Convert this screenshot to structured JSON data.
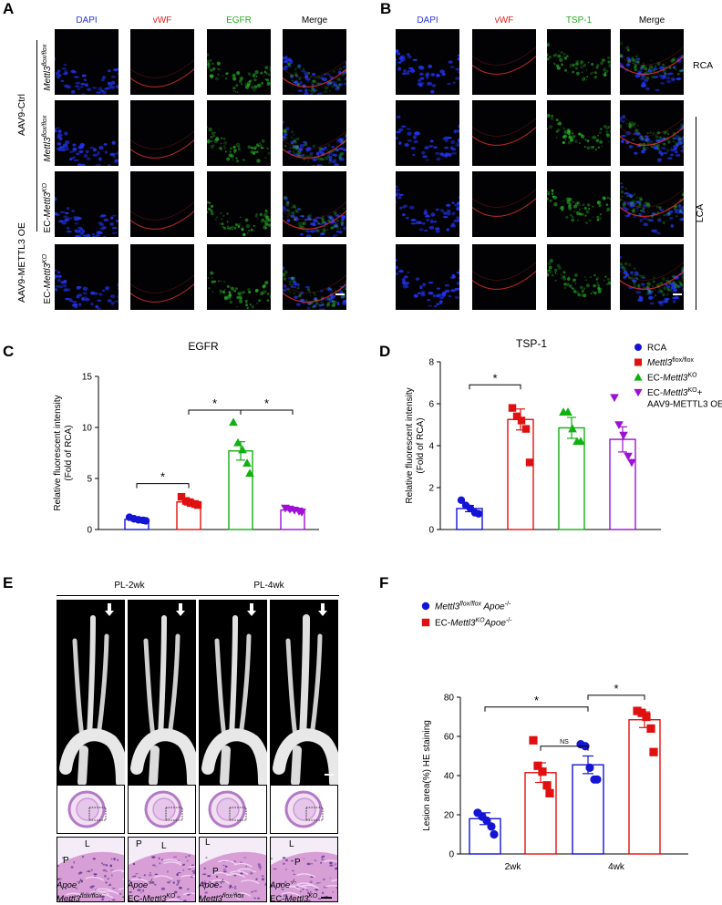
{
  "panels": {
    "A": {
      "label": "A",
      "channels": [
        "DAPI",
        "vWF",
        "EGFR",
        "Merge"
      ],
      "group_ctrl": "AAV9-Ctrl",
      "group_oe": "AAV9-METTL3 OE",
      "rows": [
        {
          "gene": "Mettl3",
          "sup": "flox/flox",
          "prefix": ""
        },
        {
          "gene": "Mettl3",
          "sup": "flox/flox",
          "prefix": ""
        },
        {
          "gene": "Mettl3",
          "sup": "KO",
          "prefix": "EC-"
        },
        {
          "gene": "Mettl3",
          "sup": "KO",
          "prefix": "EC-"
        }
      ]
    },
    "B": {
      "label": "B",
      "channels": [
        "DAPI",
        "vWF",
        "TSP-1",
        "Merge"
      ],
      "rca": "RCA",
      "lca": "LCA"
    },
    "C": {
      "label": "C"
    },
    "D": {
      "label": "D"
    },
    "E": {
      "label": "E",
      "pl2": "PL-2wk",
      "pl4": "PL-4wk",
      "zoom_L": "L",
      "zoom_P": "P",
      "captions": [
        {
          "l1": "Apoe",
          "s1": "-/-",
          "l2pre": "",
          "l2": "Mettl3",
          "s2": "flox/flox"
        },
        {
          "l1": "Apoe",
          "s1": "-/-",
          "l2pre": "EC-",
          "l2": "Mettl3",
          "s2": "KO"
        },
        {
          "l1": "Apoe",
          "s1": "-/-",
          "l2pre": "",
          "l2": "Mettl3",
          "s2": "flox/flox"
        },
        {
          "l1": "Apoe",
          "s1": "-/-",
          "l2pre": "EC-",
          "l2": "Mettl3",
          "s2": "KO"
        }
      ]
    },
    "F": {
      "label": "F"
    }
  },
  "chart_data": [
    {
      "id": "C",
      "type": "bar",
      "title": "EGFR",
      "ylabel": "Relative fluorescent intensity\n(Fold of RCA)",
      "ylim": [
        0,
        15
      ],
      "yticks": [
        "0",
        "5",
        "10",
        "15"
      ],
      "series": [
        {
          "name": "RCA",
          "color": "#1414d4",
          "marker": "circle",
          "mean": 1.0,
          "sem": 0.1,
          "points": [
            1.2,
            1.05,
            0.95,
            0.9,
            0.85
          ]
        },
        {
          "name": "Mettl3 flox/flox",
          "color": "#e01010",
          "marker": "square",
          "mean": 2.7,
          "sem": 0.3,
          "points": [
            3.2,
            2.8,
            2.6,
            2.5,
            2.4
          ]
        },
        {
          "name": "EC-Mettl3 KO",
          "color": "#10b010",
          "marker": "triangle",
          "mean": 7.7,
          "sem": 0.9,
          "points": [
            10.5,
            8.5,
            7.8,
            6.5,
            5.5
          ]
        },
        {
          "name": "EC-Mettl3 KO + AAV9-METTL3 OE",
          "color": "#9d10d4",
          "marker": "triangle-down",
          "mean": 1.9,
          "sem": 0.1,
          "points": [
            2.1,
            2.0,
            1.9,
            1.8,
            1.7
          ]
        }
      ],
      "sig": [
        {
          "from": 0,
          "to": 1,
          "y": 4.5,
          "label": "*"
        },
        {
          "from": 1,
          "to": 2,
          "y": 11.7,
          "label": "*"
        },
        {
          "from": 2,
          "to": 3,
          "y": 11.7,
          "label": "*"
        }
      ]
    },
    {
      "id": "D",
      "type": "bar",
      "title": "TSP-1",
      "ylabel": "Relative fluorescent intensity\n(Fold of RCA)",
      "ylim": [
        0,
        8
      ],
      "yticks": [
        "0",
        "2",
        "4",
        "6",
        "8"
      ],
      "series": [
        {
          "name": "RCA",
          "color": "#1414d4",
          "marker": "circle",
          "mean": 1.0,
          "sem": 0.15,
          "points": [
            1.4,
            1.15,
            1.0,
            0.8,
            0.75
          ]
        },
        {
          "name": "Mettl3 flox/flox",
          "color": "#e01010",
          "marker": "square",
          "mean": 5.25,
          "sem": 0.5,
          "points": [
            5.8,
            5.4,
            5.2,
            4.8,
            3.2
          ]
        },
        {
          "name": "EC-Mettl3 KO",
          "color": "#10b010",
          "marker": "triangle",
          "mean": 4.85,
          "sem": 0.5,
          "points": [
            5.6,
            5.6,
            4.8,
            4.2,
            4.2
          ]
        },
        {
          "name": "EC-Mettl3 KO + AAV9-METTL3 OE",
          "color": "#9d10d4",
          "marker": "triangle-down",
          "mean": 4.3,
          "sem": 0.6,
          "points": [
            6.3,
            5.0,
            4.5,
            3.5,
            3.2
          ]
        }
      ],
      "sig": [
        {
          "from": 0,
          "to": 1,
          "y": 6.9,
          "label": "*"
        }
      ],
      "legend": {
        "placement": "right",
        "entries": [
          {
            "text": "RCA",
            "color": "#1414d4",
            "marker": "circle",
            "italic_part": "",
            "sup": "",
            "tail": ""
          },
          {
            "text": "",
            "color": "#e01010",
            "marker": "square",
            "italic_part": "Mettl3",
            "sup": "flox/flox",
            "tail": ""
          },
          {
            "text": "EC-",
            "color": "#10b010",
            "marker": "triangle",
            "italic_part": "Mettl3",
            "sup": "KO",
            "tail": ""
          },
          {
            "text": "EC-",
            "color": "#9d10d4",
            "marker": "triangle-down",
            "italic_part": "Mettl3",
            "sup": "KO",
            "tail": "+",
            "line2": "AAV9-METTL3 OE"
          }
        ]
      }
    },
    {
      "id": "F",
      "type": "bar",
      "title": "",
      "ylabel": "Lesion area(%) HE staining",
      "ylim": [
        0,
        80
      ],
      "yticks": [
        "0",
        "20",
        "40",
        "60",
        "80"
      ],
      "categories": [
        "2wk",
        "4wk"
      ],
      "series": [
        {
          "name": "Mettl3 flox/flox Apoe-/-",
          "color": "#1414d4",
          "marker": "circle",
          "values": [
            18,
            45.5
          ],
          "sem": [
            3,
            4.5
          ],
          "points": [
            [
              21,
              19,
              17,
              14,
              10
            ],
            [
              56,
              55,
              44,
              38,
              38
            ]
          ]
        },
        {
          "name": "EC-Mettl3 KO Apoe-/-",
          "color": "#e01010",
          "marker": "square",
          "values": [
            41.5,
            68.5
          ],
          "sem": [
            5,
            4
          ],
          "points": [
            [
              58,
              45,
              42,
              35,
              31
            ],
            [
              73,
              72,
              70,
              64,
              52
            ]
          ]
        }
      ],
      "sig": [
        {
          "x1": 0,
          "x2": 2,
          "y": 75,
          "label": "*"
        },
        {
          "x1": 1,
          "x2": 2,
          "y": 55,
          "label": "NS"
        },
        {
          "x1": 2,
          "x2": 3,
          "y": 81,
          "label": "*"
        }
      ],
      "legend": {
        "placement": "top",
        "entries": [
          {
            "color": "#1414d4",
            "marker": "circle",
            "pre": "",
            "italic": "Mettl3",
            "sup": "flox/flox",
            "italic2": " Apoe",
            "sup2": "-/-"
          },
          {
            "color": "#e01010",
            "marker": "square",
            "pre": "EC-",
            "italic": "Mettl3",
            "sup": "KO",
            "italic2": "Apoe",
            "sup2": "-/-"
          }
        ]
      }
    }
  ]
}
